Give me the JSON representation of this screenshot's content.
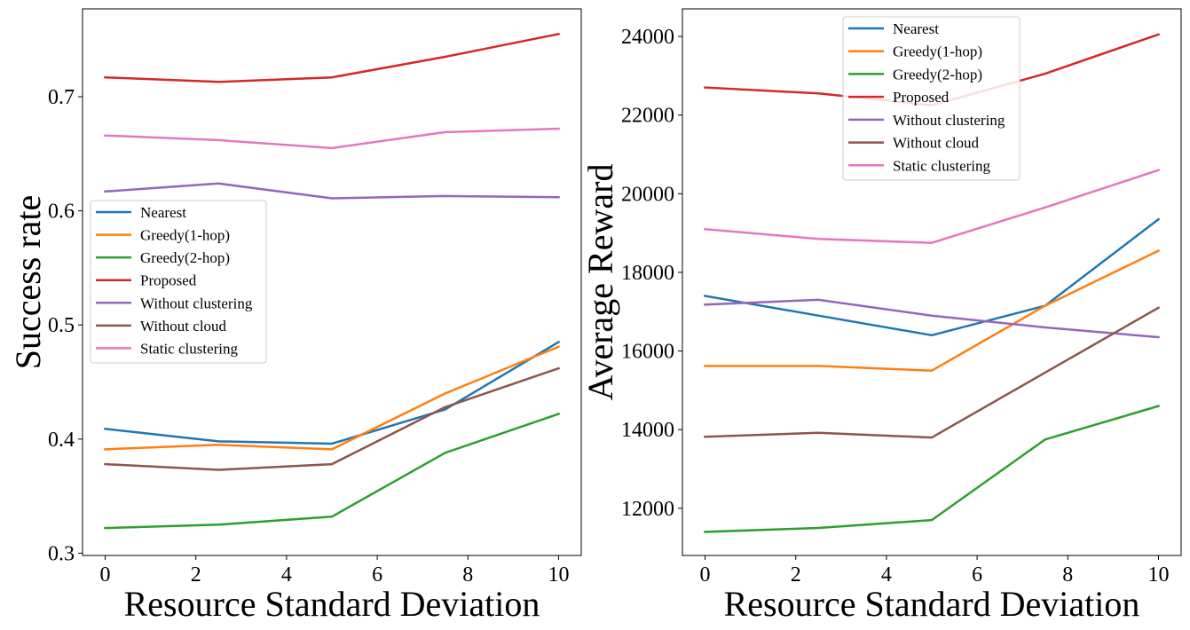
{
  "chart_data": [
    {
      "type": "line",
      "title": "",
      "xlabel": "Resource Standard Deviation",
      "ylabel": "Success rate",
      "xlim": [
        -0.5,
        10.5
      ],
      "ylim": [
        0.298,
        0.777
      ],
      "xticks": [
        0,
        2,
        4,
        6,
        8,
        10
      ],
      "yticks": [
        0.3,
        0.4,
        0.5,
        0.6,
        0.7
      ],
      "ytick_labels": [
        "0.3",
        "0.4",
        "0.5",
        "0.6",
        "0.7"
      ],
      "grid": false,
      "legend_position": "center-left",
      "x": [
        0,
        2.5,
        5,
        7.5,
        10
      ],
      "series": [
        {
          "name": "Nearest",
          "color": "#1f77b4",
          "values": [
            0.409,
            0.398,
            0.396,
            0.426,
            0.485
          ]
        },
        {
          "name": "Greedy(1-hop)",
          "color": "#ff7f0e",
          "values": [
            0.391,
            0.395,
            0.391,
            0.44,
            0.481
          ]
        },
        {
          "name": "Greedy(2-hop)",
          "color": "#2ca02c",
          "values": [
            0.322,
            0.325,
            0.332,
            0.388,
            0.422
          ]
        },
        {
          "name": "Proposed",
          "color": "#d62728",
          "values": [
            0.717,
            0.713,
            0.717,
            0.735,
            0.755
          ]
        },
        {
          "name": "Without clustering",
          "color": "#9467bd",
          "values": [
            0.617,
            0.624,
            0.611,
            0.613,
            0.612
          ]
        },
        {
          "name": "Without cloud",
          "color": "#8c564b",
          "values": [
            0.378,
            0.373,
            0.378,
            0.428,
            0.462
          ]
        },
        {
          "name": "Static clustering",
          "color": "#e377c2",
          "values": [
            0.666,
            0.662,
            0.655,
            0.669,
            0.672
          ]
        }
      ]
    },
    {
      "type": "line",
      "title": "",
      "xlabel": "Resource Standard Deviation",
      "ylabel": "Average Reward",
      "xlim": [
        -0.5,
        10.5
      ],
      "ylim": [
        10800,
        24700
      ],
      "xticks": [
        0,
        2,
        4,
        6,
        8,
        10
      ],
      "yticks": [
        12000,
        14000,
        16000,
        18000,
        20000,
        22000,
        24000
      ],
      "ytick_labels": [
        "12000",
        "14000",
        "16000",
        "18000",
        "20000",
        "22000",
        "24000"
      ],
      "grid": false,
      "legend_position": "top-center",
      "x": [
        0,
        2.5,
        5,
        7.5,
        10
      ],
      "series": [
        {
          "name": "Nearest",
          "color": "#1f77b4",
          "values": [
            17400,
            16900,
            16400,
            17150,
            19350
          ]
        },
        {
          "name": "Greedy(1-hop)",
          "color": "#ff7f0e",
          "values": [
            15620,
            15620,
            15500,
            17150,
            18550
          ]
        },
        {
          "name": "Greedy(2-hop)",
          "color": "#2ca02c",
          "values": [
            11400,
            11500,
            11700,
            13750,
            14600
          ]
        },
        {
          "name": "Proposed",
          "color": "#d62728",
          "values": [
            22700,
            22550,
            22250,
            23050,
            24050
          ]
        },
        {
          "name": "Without clustering",
          "color": "#9467bd",
          "values": [
            17180,
            17300,
            16900,
            16600,
            16350
          ]
        },
        {
          "name": "Without cloud",
          "color": "#8c564b",
          "values": [
            13820,
            13920,
            13800,
            15450,
            17100
          ]
        },
        {
          "name": "Static clustering",
          "color": "#e377c2",
          "values": [
            19100,
            18850,
            18750,
            19650,
            20600
          ]
        }
      ]
    }
  ]
}
